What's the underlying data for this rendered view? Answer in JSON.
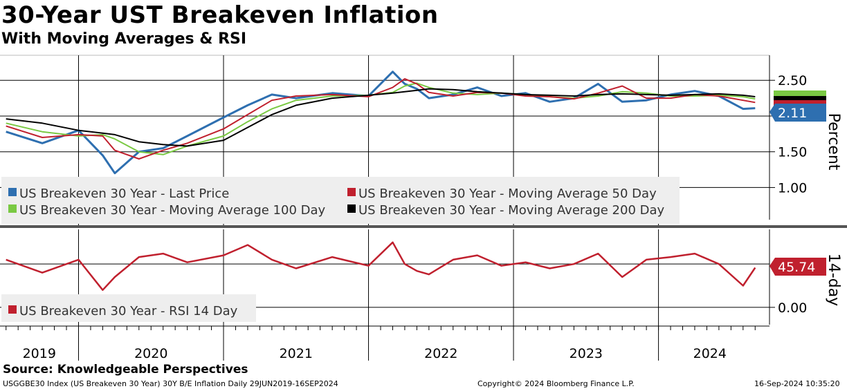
{
  "header": {
    "title": "30-Year UST Breakeven Inflation",
    "subtitle": "With Moving Averages & RSI"
  },
  "footer": {
    "source": "Source: Knowledgeable Perspectives",
    "ticker": "USGGBE30 Index (US Breakeven 30 Year) 30Y B/E Inflation  Daily 29JUN2019-16SEP2024",
    "copyright": "Copyright© 2024 Bloomberg Finance L.P.",
    "timestamp": "16-Sep-2024 10:35:20"
  },
  "colors": {
    "last_price": "#2e6fb0",
    "ma50": "#c0202e",
    "ma100": "#7ac943",
    "ma200": "#000000",
    "rsi": "#c0202e",
    "legend_bg": "#eeeeee",
    "divider": "#555555"
  },
  "chart_data": [
    {
      "type": "line",
      "panel": "price",
      "ylabel": "Percent",
      "ylim": [
        0.55,
        2.85
      ],
      "yticks": [
        "1.00",
        "1.50",
        "2.00",
        "2.50"
      ],
      "grid": true,
      "legend_placement": "bottom-left",
      "last_value_tag": "2.11",
      "x_tick_labels": [
        "2019",
        "2020",
        "2021",
        "2022",
        "2023",
        "2024"
      ],
      "x": [
        "2019-07",
        "2019-10",
        "2020-01",
        "2020-03",
        "2020-04",
        "2020-06",
        "2020-08",
        "2020-10",
        "2021-01",
        "2021-03",
        "2021-05",
        "2021-07",
        "2021-10",
        "2022-01",
        "2022-03",
        "2022-04",
        "2022-05",
        "2022-06",
        "2022-08",
        "2022-10",
        "2022-12",
        "2023-02",
        "2023-04",
        "2023-06",
        "2023-08",
        "2023-10",
        "2023-12",
        "2024-02",
        "2024-04",
        "2024-06",
        "2024-08",
        "2024-09"
      ],
      "series": [
        {
          "name": "US Breakeven 30 Year - Last Price",
          "color": "#2e6fb0",
          "values": [
            1.78,
            1.62,
            1.8,
            1.45,
            1.2,
            1.5,
            1.55,
            1.72,
            1.98,
            2.15,
            2.3,
            2.25,
            2.32,
            2.28,
            2.62,
            2.45,
            2.38,
            2.25,
            2.3,
            2.4,
            2.28,
            2.32,
            2.2,
            2.25,
            2.45,
            2.2,
            2.22,
            2.3,
            2.35,
            2.28,
            2.1,
            2.11
          ]
        },
        {
          "name": "US Breakeven 30 Year - Moving Average 50 Day",
          "color": "#c0202e",
          "values": [
            1.86,
            1.7,
            1.74,
            1.72,
            1.52,
            1.4,
            1.52,
            1.62,
            1.82,
            2.02,
            2.22,
            2.28,
            2.3,
            2.27,
            2.4,
            2.52,
            2.45,
            2.33,
            2.28,
            2.33,
            2.32,
            2.28,
            2.27,
            2.24,
            2.32,
            2.42,
            2.25,
            2.25,
            2.3,
            2.28,
            2.22,
            2.19
          ]
        },
        {
          "name": "US Breakeven 30 Year - Moving Average 100 Day",
          "color": "#7ac943",
          "values": [
            1.9,
            1.78,
            1.72,
            1.74,
            1.68,
            1.5,
            1.46,
            1.58,
            1.72,
            1.92,
            2.1,
            2.22,
            2.28,
            2.29,
            2.33,
            2.42,
            2.46,
            2.4,
            2.32,
            2.3,
            2.32,
            2.3,
            2.27,
            2.25,
            2.28,
            2.34,
            2.32,
            2.28,
            2.28,
            2.29,
            2.27,
            2.24
          ]
        },
        {
          "name": "US Breakeven 30 Year - Moving Average 200 Day",
          "color": "#000000",
          "values": [
            1.96,
            1.9,
            1.8,
            1.76,
            1.74,
            1.64,
            1.6,
            1.58,
            1.66,
            1.84,
            2.02,
            2.15,
            2.25,
            2.29,
            2.32,
            2.34,
            2.36,
            2.38,
            2.37,
            2.34,
            2.32,
            2.3,
            2.29,
            2.28,
            2.3,
            2.31,
            2.3,
            2.29,
            2.3,
            2.31,
            2.29,
            2.27
          ]
        }
      ]
    },
    {
      "type": "line",
      "panel": "rsi",
      "ylabel": "14-day",
      "ylim": [
        -20,
        90
      ],
      "yticks": [
        "0.00"
      ],
      "grid": true,
      "legend_placement": "bottom-left",
      "last_value_tag": "45.74",
      "x": [
        "2019-07",
        "2019-10",
        "2020-01",
        "2020-03",
        "2020-04",
        "2020-06",
        "2020-08",
        "2020-10",
        "2021-01",
        "2021-03",
        "2021-05",
        "2021-07",
        "2021-10",
        "2022-01",
        "2022-03",
        "2022-04",
        "2022-05",
        "2022-06",
        "2022-08",
        "2022-10",
        "2022-12",
        "2023-02",
        "2023-04",
        "2023-06",
        "2023-08",
        "2023-10",
        "2023-12",
        "2024-02",
        "2024-04",
        "2024-06",
        "2024-08",
        "2024-09"
      ],
      "series": [
        {
          "name": "US Breakeven 30 Year - RSI 14 Day",
          "color": "#c0202e",
          "values": [
            55,
            40,
            55,
            20,
            35,
            58,
            62,
            52,
            60,
            72,
            55,
            45,
            58,
            48,
            75,
            50,
            42,
            38,
            55,
            60,
            48,
            52,
            45,
            50,
            62,
            35,
            55,
            58,
            62,
            50,
            25,
            45.74
          ]
        }
      ]
    }
  ]
}
